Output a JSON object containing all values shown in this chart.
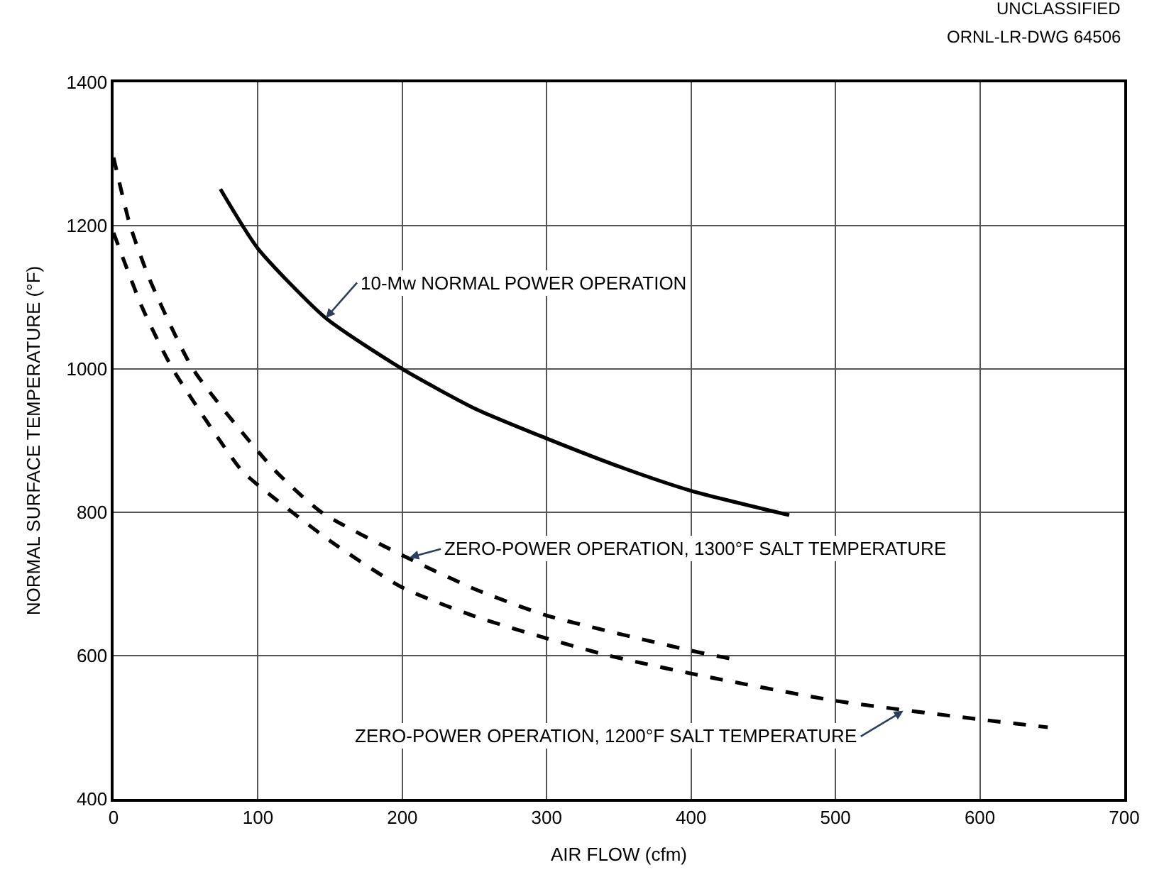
{
  "chart_data": {
    "type": "line",
    "xlabel": "AIR FLOW (cfm)",
    "ylabel": "NORMAL SURFACE TEMPERATURE (°F)",
    "xlim": [
      0,
      700
    ],
    "xticks": [
      0,
      100,
      200,
      300,
      400,
      500,
      600,
      700
    ],
    "ylim": [
      400,
      1400
    ],
    "yticks": [
      400,
      600,
      800,
      1000,
      1200,
      1400
    ],
    "grid": true,
    "marker": "none",
    "series": [
      {
        "color": "#000000",
        "line_style": "solid",
        "x": [
          74,
          100,
          147,
          200,
          250,
          300,
          354,
          400,
          468
        ],
        "values": [
          1251,
          1168,
          1071,
          1000,
          945,
          903,
          861,
          830,
          796
        ]
      },
      {
        "color": "#000000",
        "line_style": "dashed",
        "x": [
          0,
          11.5,
          25,
          55,
          111,
          144,
          200,
          250,
          300,
          400,
          434
        ],
        "values": [
          1295,
          1200,
          1125,
          1000,
          860,
          800,
          740,
          693,
          656,
          607,
          593
        ]
      },
      {
        "color": "#000000",
        "line_style": "dashed",
        "x": [
          0,
          20,
          41,
          88,
          100,
          150,
          200,
          250,
          300,
          341,
          400,
          500,
          600,
          647
        ],
        "values": [
          1190,
          1085,
          1000,
          860,
          838,
          760,
          695,
          655,
          624,
          601,
          575,
          537,
          511,
          500
        ]
      }
    ],
    "annotations": [
      {
        "text": "10-Mw NORMAL POWER OPERATION",
        "x": 147,
        "y": 1071
      },
      {
        "text": "ZERO-POWER OPERATION, 1300°F SALT TEMPERATURE",
        "x": 205,
        "y": 737
      },
      {
        "text": "ZERO-POWER OPERATION, 1200°F SALT TEMPERATURE",
        "x": 547,
        "y": 523
      },
      "UNCLASSIFIED",
      "ORNL-LR-DWG 64506"
    ]
  }
}
